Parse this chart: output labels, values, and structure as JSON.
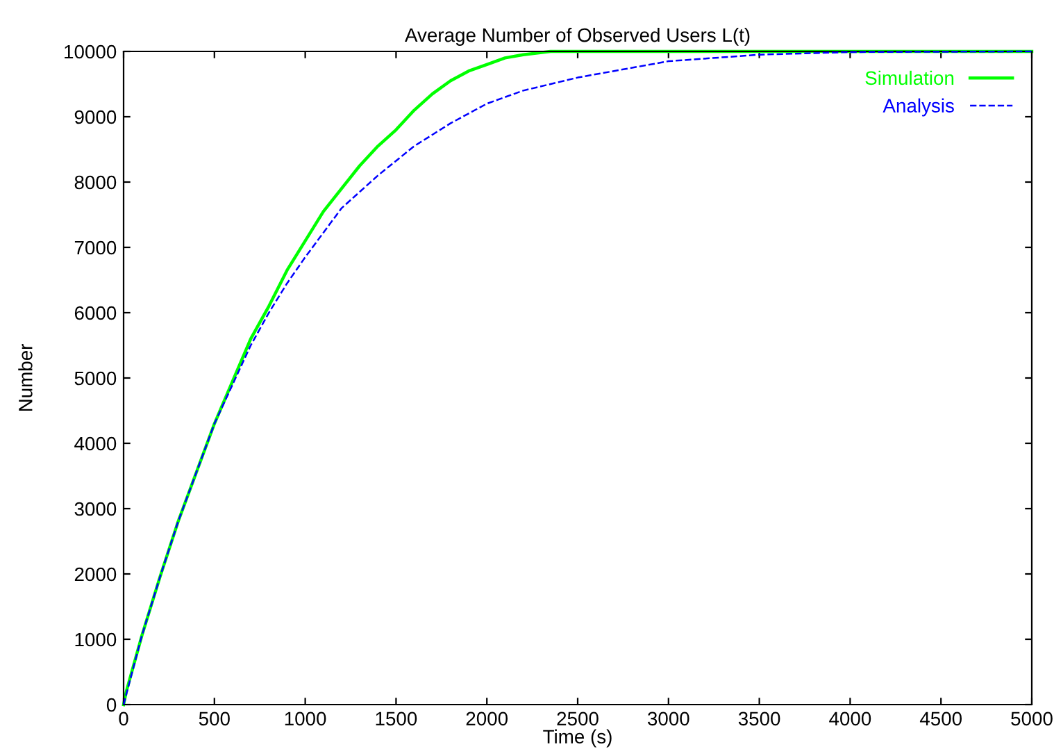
{
  "chart_data": {
    "type": "line",
    "title": "Average Number of Observed Users L(t)",
    "xlabel": "Time (s)",
    "ylabel": "Number",
    "xlim": [
      0,
      5000
    ],
    "xticks": [
      0,
      500,
      1000,
      1500,
      2000,
      2500,
      3000,
      3500,
      4000,
      4500,
      5000
    ],
    "ylim": [
      0,
      10000
    ],
    "yticks": [
      0,
      1000,
      2000,
      3000,
      4000,
      5000,
      6000,
      7000,
      8000,
      9000,
      10000
    ],
    "grid": false,
    "legend": "top right",
    "series": [
      {
        "name": "Simulation",
        "color": "#00ff00",
        "line_style": "solid",
        "x": [
          0,
          15,
          100,
          200,
          300,
          400,
          500,
          600,
          700,
          800,
          900,
          1000,
          1100,
          1200,
          1300,
          1400,
          1500,
          1600,
          1700,
          1800,
          1900,
          2000,
          2100,
          2200,
          2350,
          3000,
          4000,
          5000
        ],
        "values": [
          0,
          200,
          1050,
          1950,
          2800,
          3550,
          4300,
          4950,
          5600,
          6100,
          6650,
          7100,
          7550,
          7900,
          8250,
          8550,
          8800,
          9100,
          9350,
          9550,
          9700,
          9800,
          9900,
          9950,
          10000,
          10000,
          10000,
          10000
        ]
      },
      {
        "name": "Analysis",
        "color": "#0000ff",
        "line_style": "dashed",
        "x": [
          0,
          100,
          200,
          300,
          400,
          500,
          600,
          700,
          800,
          900,
          1000,
          1200,
          1400,
          1600,
          1800,
          2000,
          2200,
          2500,
          3000,
          3500,
          4000,
          5000
        ],
        "values": [
          0,
          1050,
          1950,
          2800,
          3550,
          4300,
          4900,
          5500,
          6000,
          6450,
          6850,
          7600,
          8100,
          8550,
          8900,
          9200,
          9400,
          9600,
          9850,
          9950,
          9990,
          10000
        ]
      }
    ]
  }
}
